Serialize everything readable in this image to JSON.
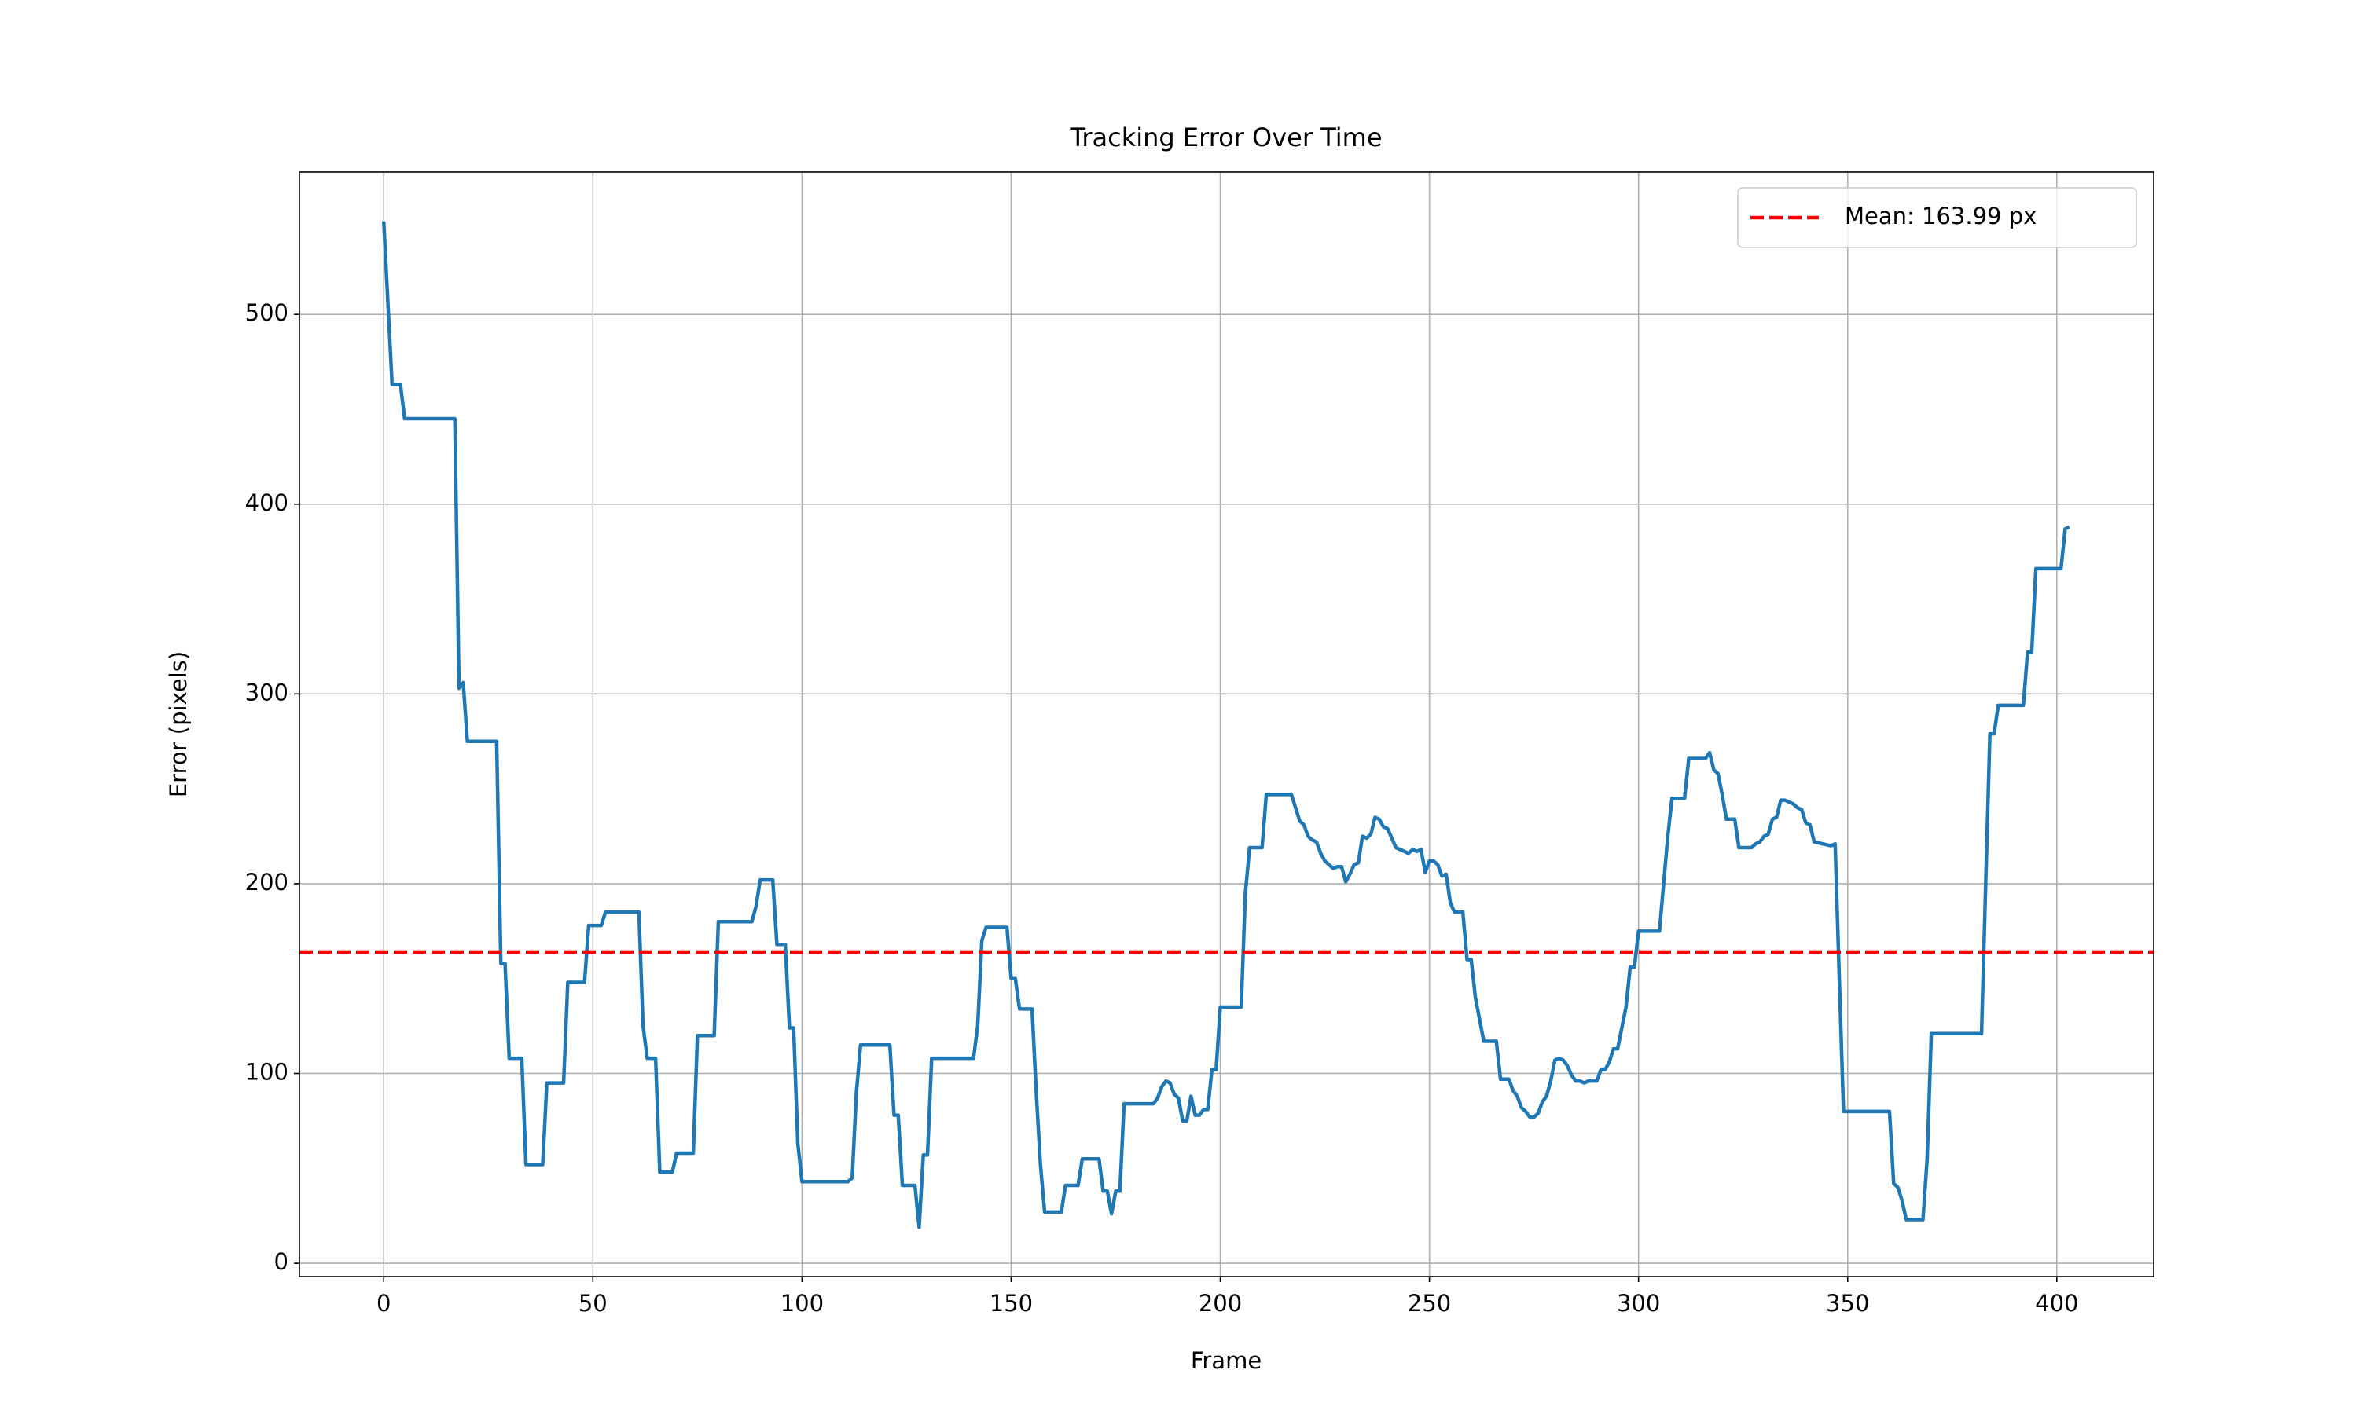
{
  "chart_data": {
    "type": "line",
    "title": "Tracking Error Over Time",
    "x_label": "Frame",
    "y_label": "Error (pixels)",
    "xlim": [
      -20.15,
      423.15
    ],
    "ylim": [
      -7,
      575
    ],
    "xticks": [
      0,
      50,
      100,
      150,
      200,
      250,
      300,
      350,
      400
    ],
    "yticks": [
      0,
      100,
      200,
      300,
      400,
      500
    ],
    "grid": true,
    "legend": "upper right",
    "color": "#1f77b4",
    "x": [
      0,
      2,
      4,
      5,
      17,
      18,
      19,
      20,
      27,
      28,
      29,
      30,
      33,
      34,
      38,
      39,
      43,
      44,
      48,
      49,
      52,
      53,
      61,
      62,
      63,
      65,
      66,
      69,
      70,
      74,
      75,
      79,
      80,
      88,
      89,
      90,
      93,
      94,
      96,
      97,
      98,
      99,
      100,
      111,
      112,
      113,
      114,
      121,
      122,
      123,
      124,
      127,
      128,
      129,
      130,
      131,
      141,
      142,
      143,
      144,
      149,
      150,
      151,
      152,
      155,
      156,
      157,
      158,
      162,
      163,
      166,
      167,
      171,
      172,
      173,
      174,
      175,
      176,
      177,
      184,
      185,
      186,
      187,
      188,
      189,
      190,
      191,
      192,
      193,
      194,
      195,
      196,
      197,
      198,
      199,
      200,
      205,
      206,
      207,
      210,
      211,
      217,
      218,
      219,
      220,
      221,
      222,
      223,
      224,
      225,
      226,
      227,
      228,
      229,
      230,
      231,
      232,
      233,
      234,
      235,
      236,
      237,
      238,
      239,
      240,
      241,
      242,
      243,
      244,
      245,
      246,
      247,
      248,
      249,
      250,
      251,
      252,
      253,
      254,
      255,
      256,
      258,
      259,
      260,
      261,
      263,
      266,
      267,
      269,
      270,
      271,
      272,
      273,
      274,
      275,
      276,
      277,
      278,
      279,
      280,
      281,
      282,
      283,
      284,
      285,
      286,
      287,
      288,
      290,
      291,
      292,
      293,
      294,
      295,
      297,
      298,
      299,
      300,
      305,
      306,
      307,
      308,
      311,
      312,
      316,
      317,
      318,
      319,
      320,
      321,
      323,
      324,
      327,
      328,
      329,
      330,
      331,
      332,
      333,
      334,
      335,
      336,
      337,
      338,
      339,
      340,
      341,
      342,
      344,
      346,
      347,
      348,
      349,
      360,
      361,
      362,
      363,
      364,
      368,
      369,
      370,
      382,
      383,
      384,
      385,
      386,
      392,
      393,
      394,
      395,
      401,
      402,
      403
    ],
    "values": [
      549,
      463,
      463,
      445,
      445,
      303,
      306,
      275,
      275,
      158,
      158,
      108,
      108,
      52,
      52,
      95,
      95,
      148,
      148,
      178,
      178,
      185,
      185,
      125,
      108,
      108,
      48,
      48,
      58,
      58,
      120,
      120,
      180,
      180,
      188,
      202,
      202,
      168,
      168,
      124,
      124,
      63,
      43,
      43,
      45,
      90,
      115,
      115,
      78,
      78,
      41,
      41,
      19,
      57,
      57,
      108,
      108,
      125,
      170,
      177,
      177,
      150,
      150,
      134,
      134,
      90,
      52,
      27,
      27,
      41,
      41,
      55,
      55,
      38,
      38,
      26,
      38,
      38,
      84,
      84,
      87,
      93,
      96,
      95,
      89,
      87,
      75,
      75,
      88,
      78,
      78,
      81,
      81,
      102,
      102,
      135,
      135,
      195,
      219,
      219,
      247,
      247,
      240,
      233,
      231,
      225,
      223,
      222,
      216,
      212,
      210,
      208,
      209,
      209,
      201,
      205,
      210,
      211,
      225,
      224,
      226,
      235,
      234,
      230,
      229,
      224,
      219,
      218,
      217,
      216,
      218,
      217,
      218,
      206,
      212,
      212,
      210,
      204,
      205,
      190,
      185,
      185,
      160,
      160,
      140,
      117,
      117,
      97,
      97,
      91,
      88,
      82,
      80,
      77,
      77,
      79,
      85,
      88,
      96,
      107,
      108,
      107,
      104,
      99,
      96,
      96,
      95,
      96,
      96,
      102,
      102,
      106,
      113,
      113,
      135,
      156,
      156,
      175,
      175,
      200,
      225,
      245,
      245,
      266,
      266,
      269,
      260,
      258,
      247,
      234,
      234,
      219,
      219,
      221,
      222,
      225,
      226,
      234,
      235,
      244,
      244,
      243,
      242,
      240,
      239,
      232,
      231,
      222,
      221,
      220,
      221,
      150,
      80,
      80,
      42,
      40,
      33,
      23,
      23,
      55,
      121,
      121,
      200,
      279,
      279,
      294,
      294,
      322,
      322,
      366,
      366,
      387,
      388
    ],
    "hline": {
      "value": 163.99,
      "label": "Mean: 163.99 px",
      "color": "#ff0000"
    }
  }
}
